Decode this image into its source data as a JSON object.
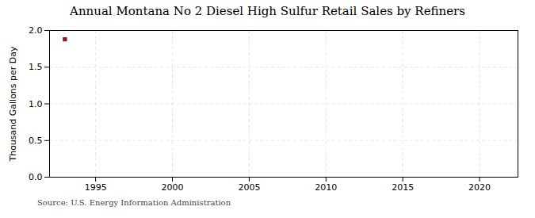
{
  "chart_data": {
    "type": "scatter",
    "title": "Annual Montana No 2 Diesel High Sulfur Retail Sales by Refiners",
    "ylabel": "Thousand Gallons per Day",
    "source": "Source: U.S. Energy Information Administration",
    "x": [
      1993
    ],
    "values": [
      1.88
    ],
    "color": "#8b1a1a",
    "marker": "square",
    "xlim": [
      1992.0,
      2022.5
    ],
    "ylim": [
      0.0,
      2.0
    ],
    "xticks": [
      1995,
      2000,
      2005,
      2010,
      2015,
      2020
    ],
    "yticks": [
      {
        "value": 0.0,
        "label": "0.0"
      },
      0.5,
      {
        "value": 1.0,
        "label": "1.0"
      },
      1.5,
      {
        "value": 2.0,
        "label": "2.0"
      }
    ],
    "grid": true
  }
}
